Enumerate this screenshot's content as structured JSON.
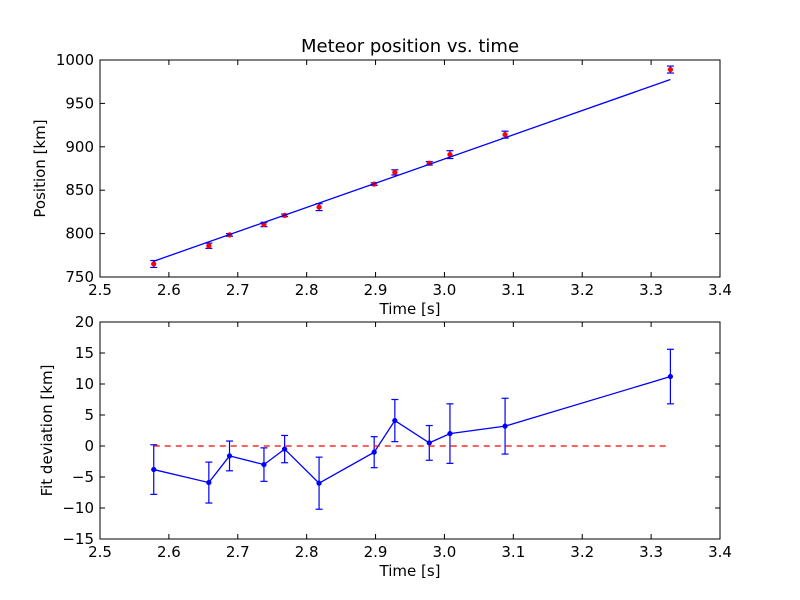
{
  "chart_data": [
    {
      "type": "scatter",
      "title": "Meteor position vs. time",
      "xlabel": "Time [s]",
      "ylabel": "Position [km]",
      "xlim": [
        2.5,
        3.4
      ],
      "ylim": [
        750,
        1000
      ],
      "xticks": [
        "2.5",
        "2.6",
        "2.7",
        "2.8",
        "2.9",
        "3.0",
        "3.1",
        "3.2",
        "3.3",
        "3.4"
      ],
      "yticks": [
        "750",
        "800",
        "850",
        "900",
        "950",
        "1000"
      ],
      "grid": false,
      "series": [
        {
          "kind": "points_with_errorbars",
          "color": "#ff0000",
          "errorbar_color": "#0000ff",
          "x": [
            2.578,
            2.658,
            2.688,
            2.738,
            2.768,
            2.818,
            2.898,
            2.928,
            2.978,
            3.008,
            3.088,
            3.328
          ],
          "y": [
            765,
            786,
            798.5,
            810.5,
            821,
            830.5,
            857,
            870.5,
            881,
            891,
            914,
            989
          ],
          "yerr": [
            4,
            3,
            1.5,
            2.5,
            1.5,
            4,
            1.5,
            3,
            2,
            4.5,
            4,
            4
          ]
        },
        {
          "kind": "line",
          "color": "#0000ff",
          "x": [
            2.578,
            3.328
          ],
          "y": [
            768.2,
            977.5
          ]
        }
      ]
    },
    {
      "type": "line",
      "title": "",
      "xlabel": "Time [s]",
      "ylabel": "Fit deviation [km]",
      "xlim": [
        2.5,
        3.4
      ],
      "ylim": [
        -15,
        20
      ],
      "xticks": [
        "2.5",
        "2.6",
        "2.7",
        "2.8",
        "2.9",
        "3.0",
        "3.1",
        "3.2",
        "3.3",
        "3.4"
      ],
      "yticks": [
        "−15",
        "−10",
        "−5",
        "0",
        "5",
        "10",
        "15",
        "20"
      ],
      "grid": false,
      "series": [
        {
          "kind": "line_with_errorbars",
          "color": "#0000ff",
          "x": [
            2.578,
            2.658,
            2.688,
            2.738,
            2.768,
            2.818,
            2.898,
            2.928,
            2.978,
            3.008,
            3.088,
            3.328
          ],
          "y": [
            -3.8,
            -5.9,
            -1.6,
            -3.0,
            -0.5,
            -6.0,
            -1.0,
            4.1,
            0.5,
            2.0,
            3.2,
            11.2
          ],
          "yerr": [
            4.0,
            3.3,
            2.4,
            2.7,
            2.2,
            4.2,
            2.5,
            3.4,
            2.8,
            4.8,
            4.5,
            4.4
          ]
        },
        {
          "kind": "reference_line",
          "color": "#ff0000",
          "style": "dashed",
          "x": [
            2.578,
            3.328
          ],
          "y": [
            0,
            0
          ]
        }
      ]
    }
  ]
}
